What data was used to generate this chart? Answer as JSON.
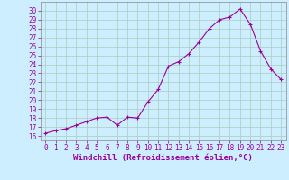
{
  "x": [
    0,
    1,
    2,
    3,
    4,
    5,
    6,
    7,
    8,
    9,
    10,
    11,
    12,
    13,
    14,
    15,
    16,
    17,
    18,
    19,
    20,
    21,
    22,
    23
  ],
  "y": [
    16.3,
    16.6,
    16.8,
    17.2,
    17.6,
    18.0,
    18.1,
    17.2,
    18.1,
    18.0,
    19.8,
    21.2,
    23.8,
    24.3,
    25.2,
    26.5,
    28.0,
    29.0,
    29.3,
    30.2,
    28.5,
    25.5,
    23.5,
    22.3
  ],
  "line_color": "#990099",
  "marker": "+",
  "marker_size": 3,
  "bg_color": "#cceeff",
  "grid_color": "#aaccbb",
  "xlabel": "Windchill (Refroidissement éolien,°C)",
  "xlim": [
    -0.5,
    23.5
  ],
  "ylim": [
    15.5,
    31.0
  ],
  "yticks": [
    16,
    17,
    18,
    19,
    20,
    21,
    22,
    23,
    24,
    25,
    26,
    27,
    28,
    29,
    30
  ],
  "xticks": [
    0,
    1,
    2,
    3,
    4,
    5,
    6,
    7,
    8,
    9,
    10,
    11,
    12,
    13,
    14,
    15,
    16,
    17,
    18,
    19,
    20,
    21,
    22,
    23
  ],
  "tick_label_size": 5.5,
  "xlabel_size": 6.5
}
